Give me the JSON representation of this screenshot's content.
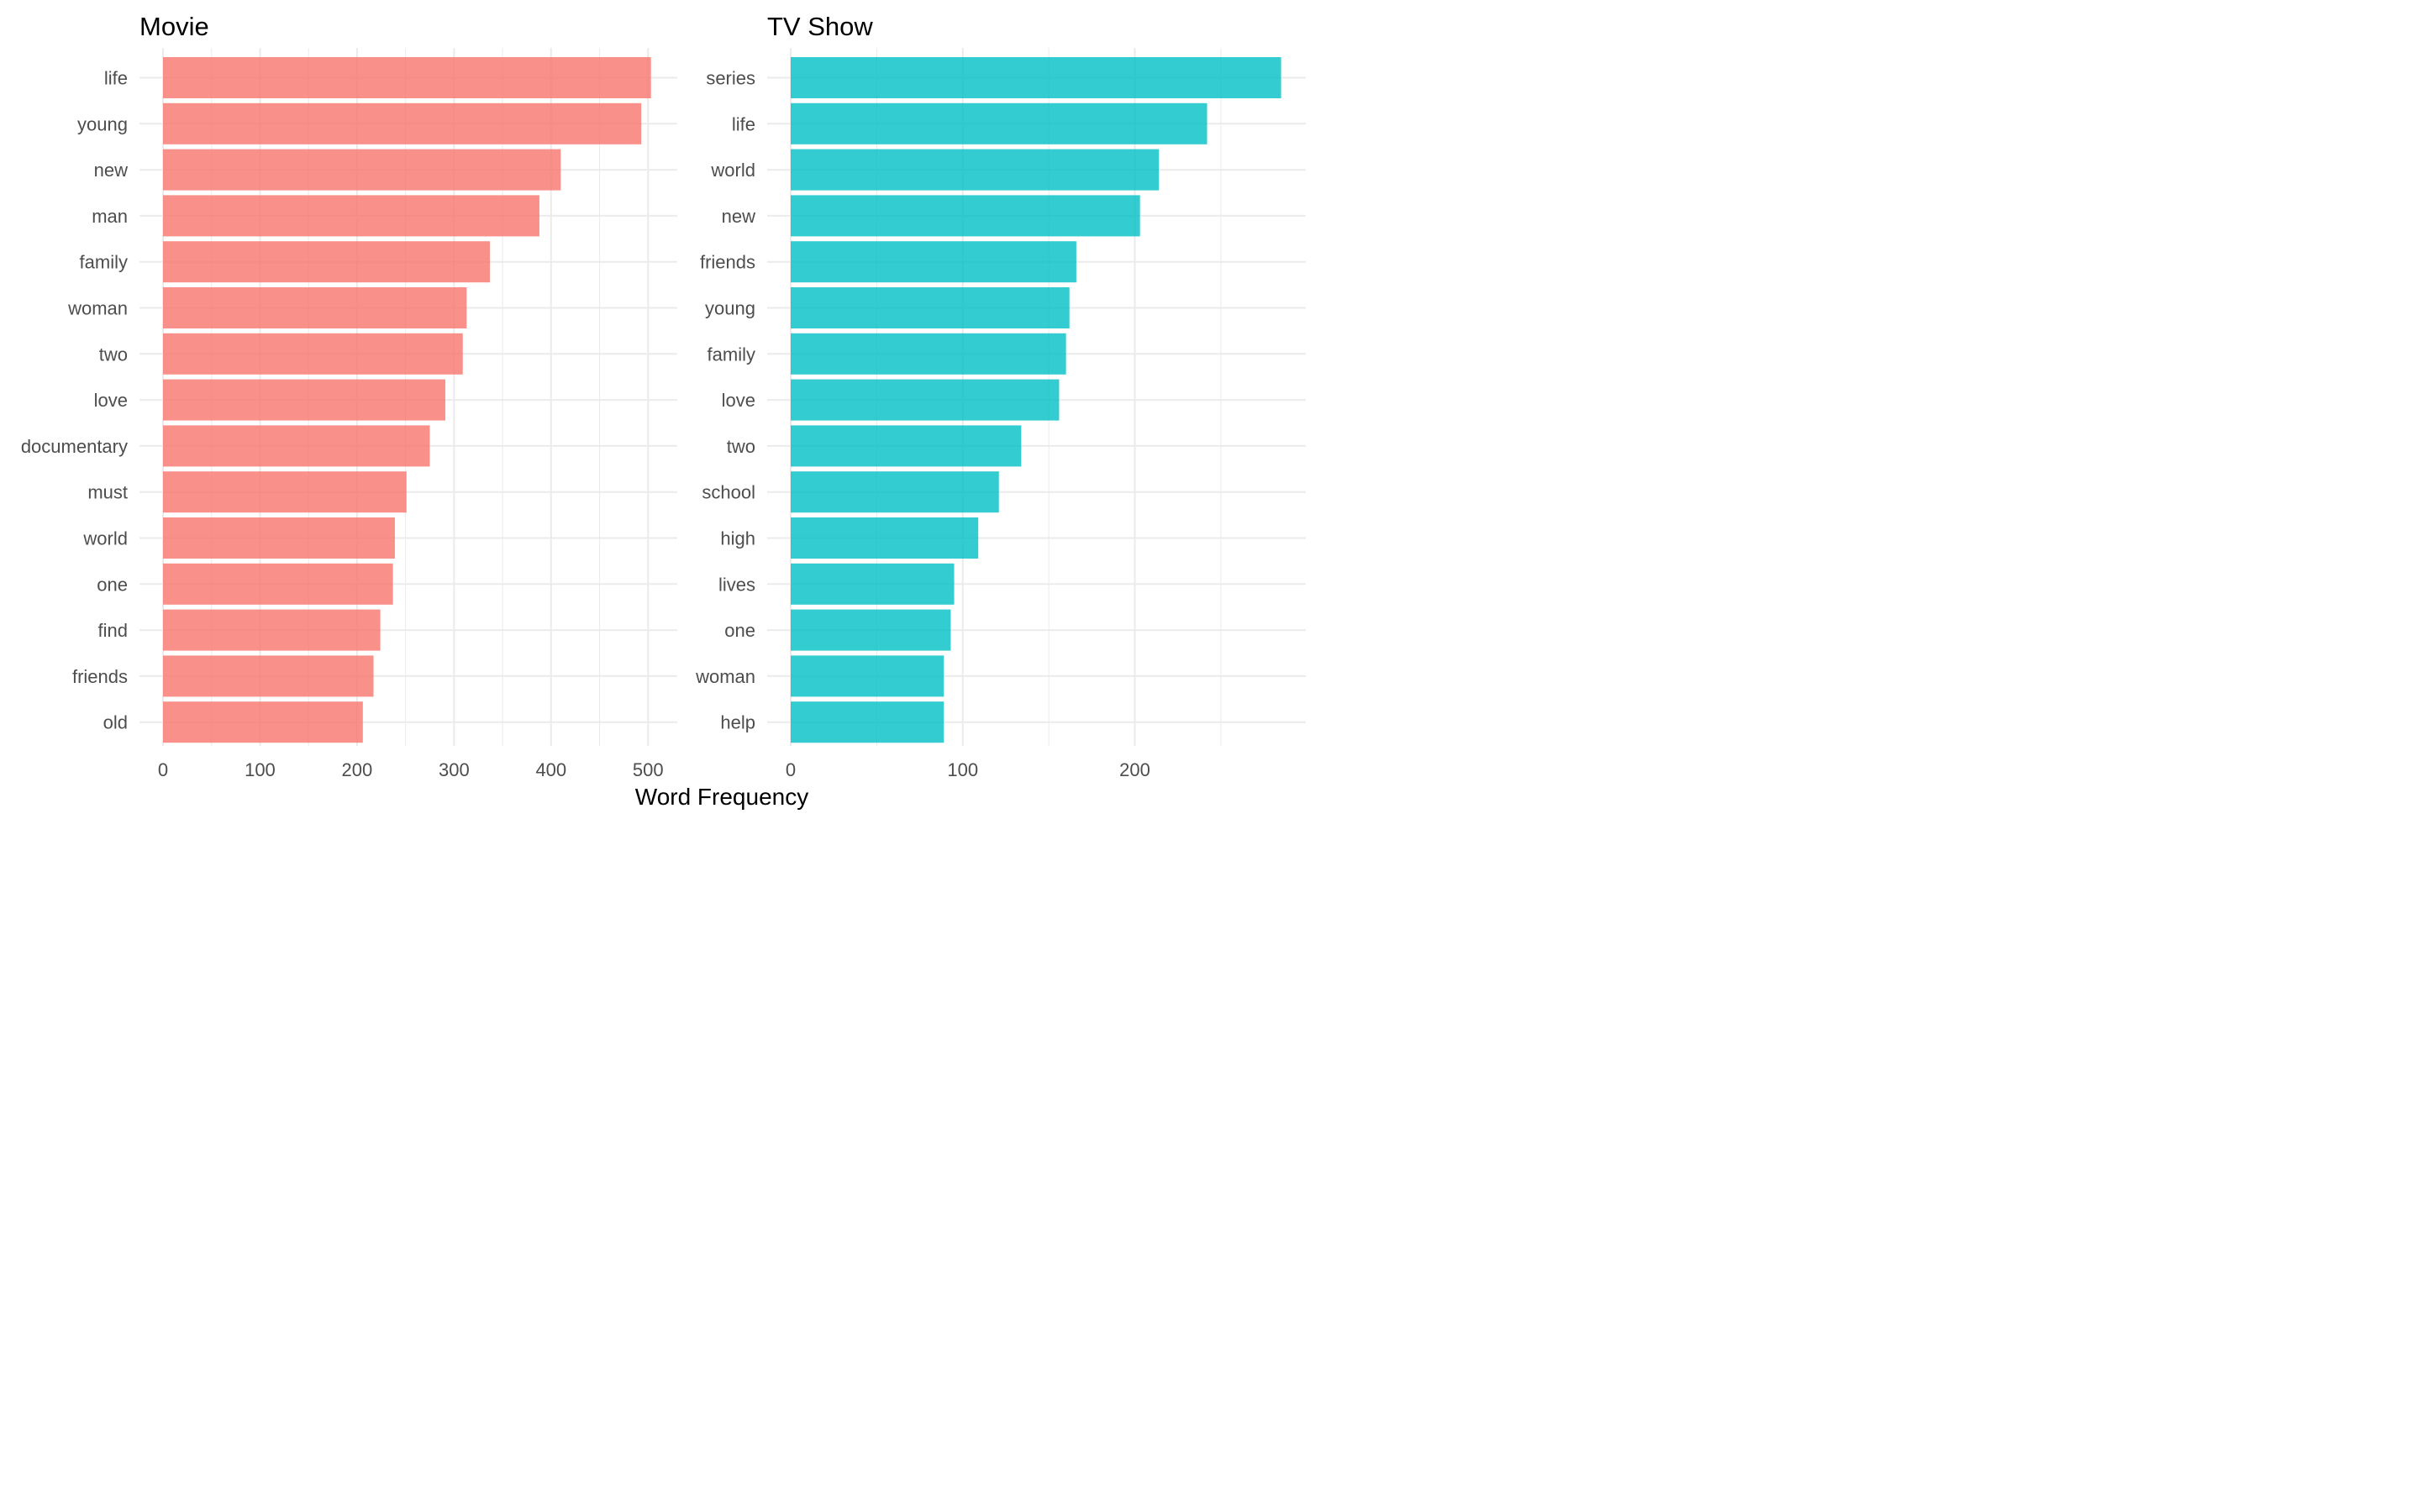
{
  "chart_data": [
    {
      "type": "bar",
      "orientation": "horizontal",
      "title": "Movie",
      "categories": [
        "life",
        "young",
        "new",
        "man",
        "family",
        "woman",
        "two",
        "love",
        "documentary",
        "must",
        "world",
        "one",
        "find",
        "friends",
        "old"
      ],
      "values": [
        503,
        493,
        410,
        388,
        337,
        313,
        309,
        291,
        275,
        251,
        239,
        237,
        224,
        217,
        206
      ],
      "color": "#F8766D",
      "xlim": [
        0,
        530
      ],
      "xticks": [
        0,
        100,
        200,
        300,
        400,
        500
      ],
      "xtick_labels": [
        "0",
        "100",
        "200",
        "300",
        "400",
        "500"
      ],
      "grid": true
    },
    {
      "type": "bar",
      "orientation": "horizontal",
      "title": "TV Show",
      "categories": [
        "series",
        "life",
        "world",
        "new",
        "friends",
        "young",
        "family",
        "love",
        "two",
        "school",
        "high",
        "lives",
        "one",
        "woman",
        "help"
      ],
      "values": [
        285,
        242,
        214,
        203,
        166,
        162,
        160,
        156,
        134,
        121,
        109,
        95,
        93,
        89,
        89
      ],
      "color": "#00BFC4",
      "xlim": [
        0,
        298
      ],
      "xticks": [
        0,
        100,
        200
      ],
      "xtick_labels": [
        "0",
        "100",
        "200"
      ],
      "grid": true
    }
  ],
  "xlabel": "Word Frequency"
}
